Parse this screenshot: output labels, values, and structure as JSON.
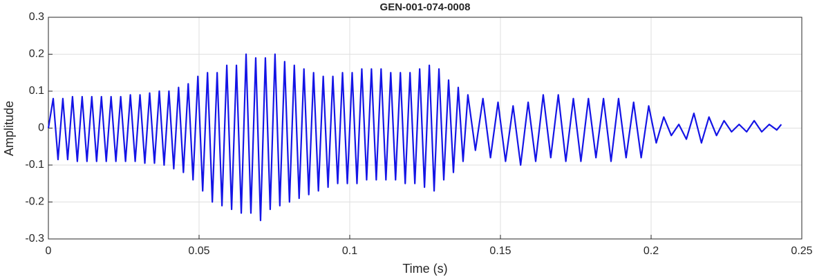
{
  "chart_data": {
    "type": "line",
    "title": "GEN-001-074-0008",
    "x_label": "Time (s)",
    "y_label": "Amplitude",
    "x": [
      0,
      0.0016,
      0.0032,
      0.0048,
      0.0064,
      0.008,
      0.0096,
      0.0112,
      0.0128,
      0.0144,
      0.016,
      0.0176,
      0.0192,
      0.0208,
      0.0224,
      0.024,
      0.0256,
      0.0272,
      0.0288,
      0.0304,
      0.032,
      0.0336,
      0.0352,
      0.0368,
      0.0384,
      0.04,
      0.0416,
      0.0432,
      0.0448,
      0.0464,
      0.048,
      0.0496,
      0.0512,
      0.0528,
      0.0544,
      0.056,
      0.0576,
      0.0592,
      0.0608,
      0.0624,
      0.064,
      0.0656,
      0.0672,
      0.0688,
      0.0704,
      0.072,
      0.0736,
      0.0752,
      0.0768,
      0.0784,
      0.08,
      0.0816,
      0.0832,
      0.0848,
      0.0864,
      0.088,
      0.0896,
      0.0912,
      0.0928,
      0.0944,
      0.096,
      0.0976,
      0.0992,
      0.1008,
      0.1024,
      0.104,
      0.1056,
      0.1072,
      0.1088,
      0.1104,
      0.112,
      0.1136,
      0.1152,
      0.1168,
      0.1184,
      0.12,
      0.1216,
      0.1232,
      0.1248,
      0.1264,
      0.128,
      0.1296,
      0.1312,
      0.1328,
      0.1344,
      0.136,
      0.1376,
      0.1392,
      0.1417,
      0.1442,
      0.1467,
      0.1492,
      0.1517,
      0.1542,
      0.1567,
      0.1592,
      0.1617,
      0.1642,
      0.1667,
      0.1692,
      0.1717,
      0.1742,
      0.1767,
      0.1792,
      0.1817,
      0.1842,
      0.1867,
      0.1892,
      0.1917,
      0.1942,
      0.1967,
      0.1992,
      0.2017,
      0.2042,
      0.2067,
      0.2092,
      0.2117,
      0.2142,
      0.2167,
      0.2192,
      0.2217,
      0.2242,
      0.2267,
      0.2292,
      0.2317,
      0.2342,
      0.2367,
      0.2392,
      0.2417,
      0.2432
    ],
    "series": [
      {
        "name": "Amplitude",
        "color": "#1414e6",
        "values": [
          0,
          0.08,
          -0.085,
          0.08,
          -0.085,
          0.085,
          -0.09,
          0.085,
          -0.09,
          0.085,
          -0.09,
          0.085,
          -0.09,
          0.085,
          -0.09,
          0.085,
          -0.09,
          0.09,
          -0.09,
          0.09,
          -0.095,
          0.095,
          -0.095,
          0.1,
          -0.1,
          0.1,
          -0.11,
          0.11,
          -0.12,
          0.12,
          -0.14,
          0.14,
          -0.17,
          0.15,
          -0.2,
          0.15,
          -0.21,
          0.17,
          -0.22,
          0.17,
          -0.23,
          0.2,
          -0.23,
          0.19,
          -0.25,
          0.19,
          -0.22,
          0.2,
          -0.21,
          0.18,
          -0.2,
          0.17,
          -0.19,
          0.16,
          -0.18,
          0.15,
          -0.17,
          0.14,
          -0.16,
          0.14,
          -0.15,
          0.15,
          -0.15,
          0.15,
          -0.15,
          0.16,
          -0.14,
          0.16,
          -0.14,
          0.16,
          -0.14,
          0.15,
          -0.14,
          0.15,
          -0.15,
          0.15,
          -0.15,
          0.16,
          -0.16,
          0.17,
          -0.17,
          0.16,
          -0.14,
          0.13,
          -0.12,
          0.11,
          -0.09,
          0.09,
          -0.06,
          0.08,
          -0.08,
          0.07,
          -0.09,
          0.06,
          -0.1,
          0.07,
          -0.09,
          0.09,
          -0.08,
          0.09,
          -0.09,
          0.08,
          -0.09,
          0.08,
          -0.08,
          0.08,
          -0.09,
          0.08,
          -0.08,
          0.07,
          -0.08,
          0.06,
          -0.04,
          0.03,
          -0.02,
          0.01,
          -0.03,
          0.04,
          -0.04,
          0.03,
          -0.02,
          0.02,
          -0.01,
          0.01,
          -0.01,
          0.02,
          -0.01,
          0.01,
          -0.005,
          0.01
        ]
      }
    ],
    "xlim": [
      0,
      0.25
    ],
    "xticks": [
      0,
      0.05,
      0.1,
      0.15,
      0.2,
      0.25
    ],
    "ylim": [
      -0.3,
      0.3
    ],
    "yticks": [
      -0.3,
      -0.2,
      -0.1,
      0,
      0.1,
      0.2,
      0.3
    ],
    "grid": true
  }
}
